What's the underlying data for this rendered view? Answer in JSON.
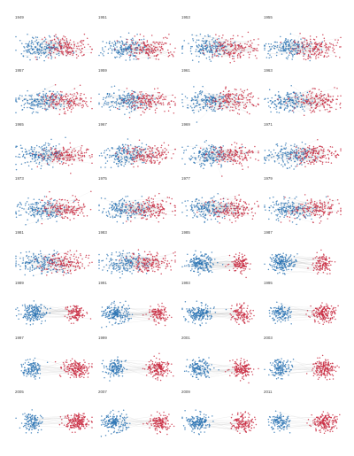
{
  "colors": {
    "blue": "#2b73b3",
    "red": "#c8283e",
    "edge": "#9a9a9a"
  },
  "panels": [
    {
      "year": "1949",
      "layout": "overlap",
      "balance": 0.55,
      "separation": 0.2
    },
    {
      "year": "1951",
      "layout": "overlap",
      "balance": 0.45,
      "separation": 0.25
    },
    {
      "year": "1953",
      "layout": "overlap",
      "balance": 0.5,
      "separation": 0.35
    },
    {
      "year": "1955",
      "layout": "overlap",
      "balance": 0.45,
      "separation": 0.3
    },
    {
      "year": "1957",
      "layout": "overlap",
      "balance": 0.5,
      "separation": 0.25
    },
    {
      "year": "1959",
      "layout": "overlap",
      "balance": 0.55,
      "separation": 0.25
    },
    {
      "year": "1961",
      "layout": "overlap",
      "balance": 0.5,
      "separation": 0.35
    },
    {
      "year": "1963",
      "layout": "overlap",
      "balance": 0.55,
      "separation": 0.4
    },
    {
      "year": "1965",
      "layout": "overlap",
      "balance": 0.6,
      "separation": 0.3
    },
    {
      "year": "1967",
      "layout": "overlap",
      "balance": 0.5,
      "separation": 0.25
    },
    {
      "year": "1969",
      "layout": "overlap",
      "balance": 0.5,
      "separation": 0.2
    },
    {
      "year": "1971",
      "layout": "overlap",
      "balance": 0.5,
      "separation": 0.3
    },
    {
      "year": "1973",
      "layout": "overlap",
      "balance": 0.45,
      "separation": 0.3
    },
    {
      "year": "1975",
      "layout": "overlap",
      "balance": 0.5,
      "separation": 0.35
    },
    {
      "year": "1977",
      "layout": "overlap",
      "balance": 0.5,
      "separation": 0.3
    },
    {
      "year": "1979",
      "layout": "overlap",
      "balance": 0.55,
      "separation": 0.35
    },
    {
      "year": "1981",
      "layout": "overlap",
      "balance": 0.5,
      "separation": 0.3
    },
    {
      "year": "1983",
      "layout": "overlap",
      "balance": 0.6,
      "separation": 0.45
    },
    {
      "year": "1985",
      "layout": "split",
      "balance": 0.62,
      "separation": 0.55
    },
    {
      "year": "1987",
      "layout": "split",
      "balance": 0.62,
      "separation": 0.6
    },
    {
      "year": "1989",
      "layout": "split",
      "balance": 0.62,
      "separation": 0.65
    },
    {
      "year": "1991",
      "layout": "split",
      "balance": 0.62,
      "separation": 0.68
    },
    {
      "year": "1993",
      "layout": "split",
      "balance": 0.62,
      "separation": 0.72
    },
    {
      "year": "1995",
      "layout": "split",
      "balance": 0.42,
      "separation": 0.75
    },
    {
      "year": "1997",
      "layout": "split",
      "balance": 0.4,
      "separation": 0.82
    },
    {
      "year": "1999",
      "layout": "split",
      "balance": 0.45,
      "separation": 0.8
    },
    {
      "year": "2001",
      "layout": "split",
      "balance": 0.5,
      "separation": 0.8
    },
    {
      "year": "2003",
      "layout": "split",
      "balance": 0.45,
      "separation": 0.85
    },
    {
      "year": "2005",
      "layout": "split",
      "balance": 0.4,
      "separation": 0.9
    },
    {
      "year": "2007",
      "layout": "split",
      "balance": 0.55,
      "separation": 0.88
    },
    {
      "year": "2009",
      "layout": "split",
      "balance": 0.55,
      "separation": 0.88
    },
    {
      "year": "2011",
      "layout": "split",
      "balance": 0.4,
      "separation": 0.92
    }
  ]
}
